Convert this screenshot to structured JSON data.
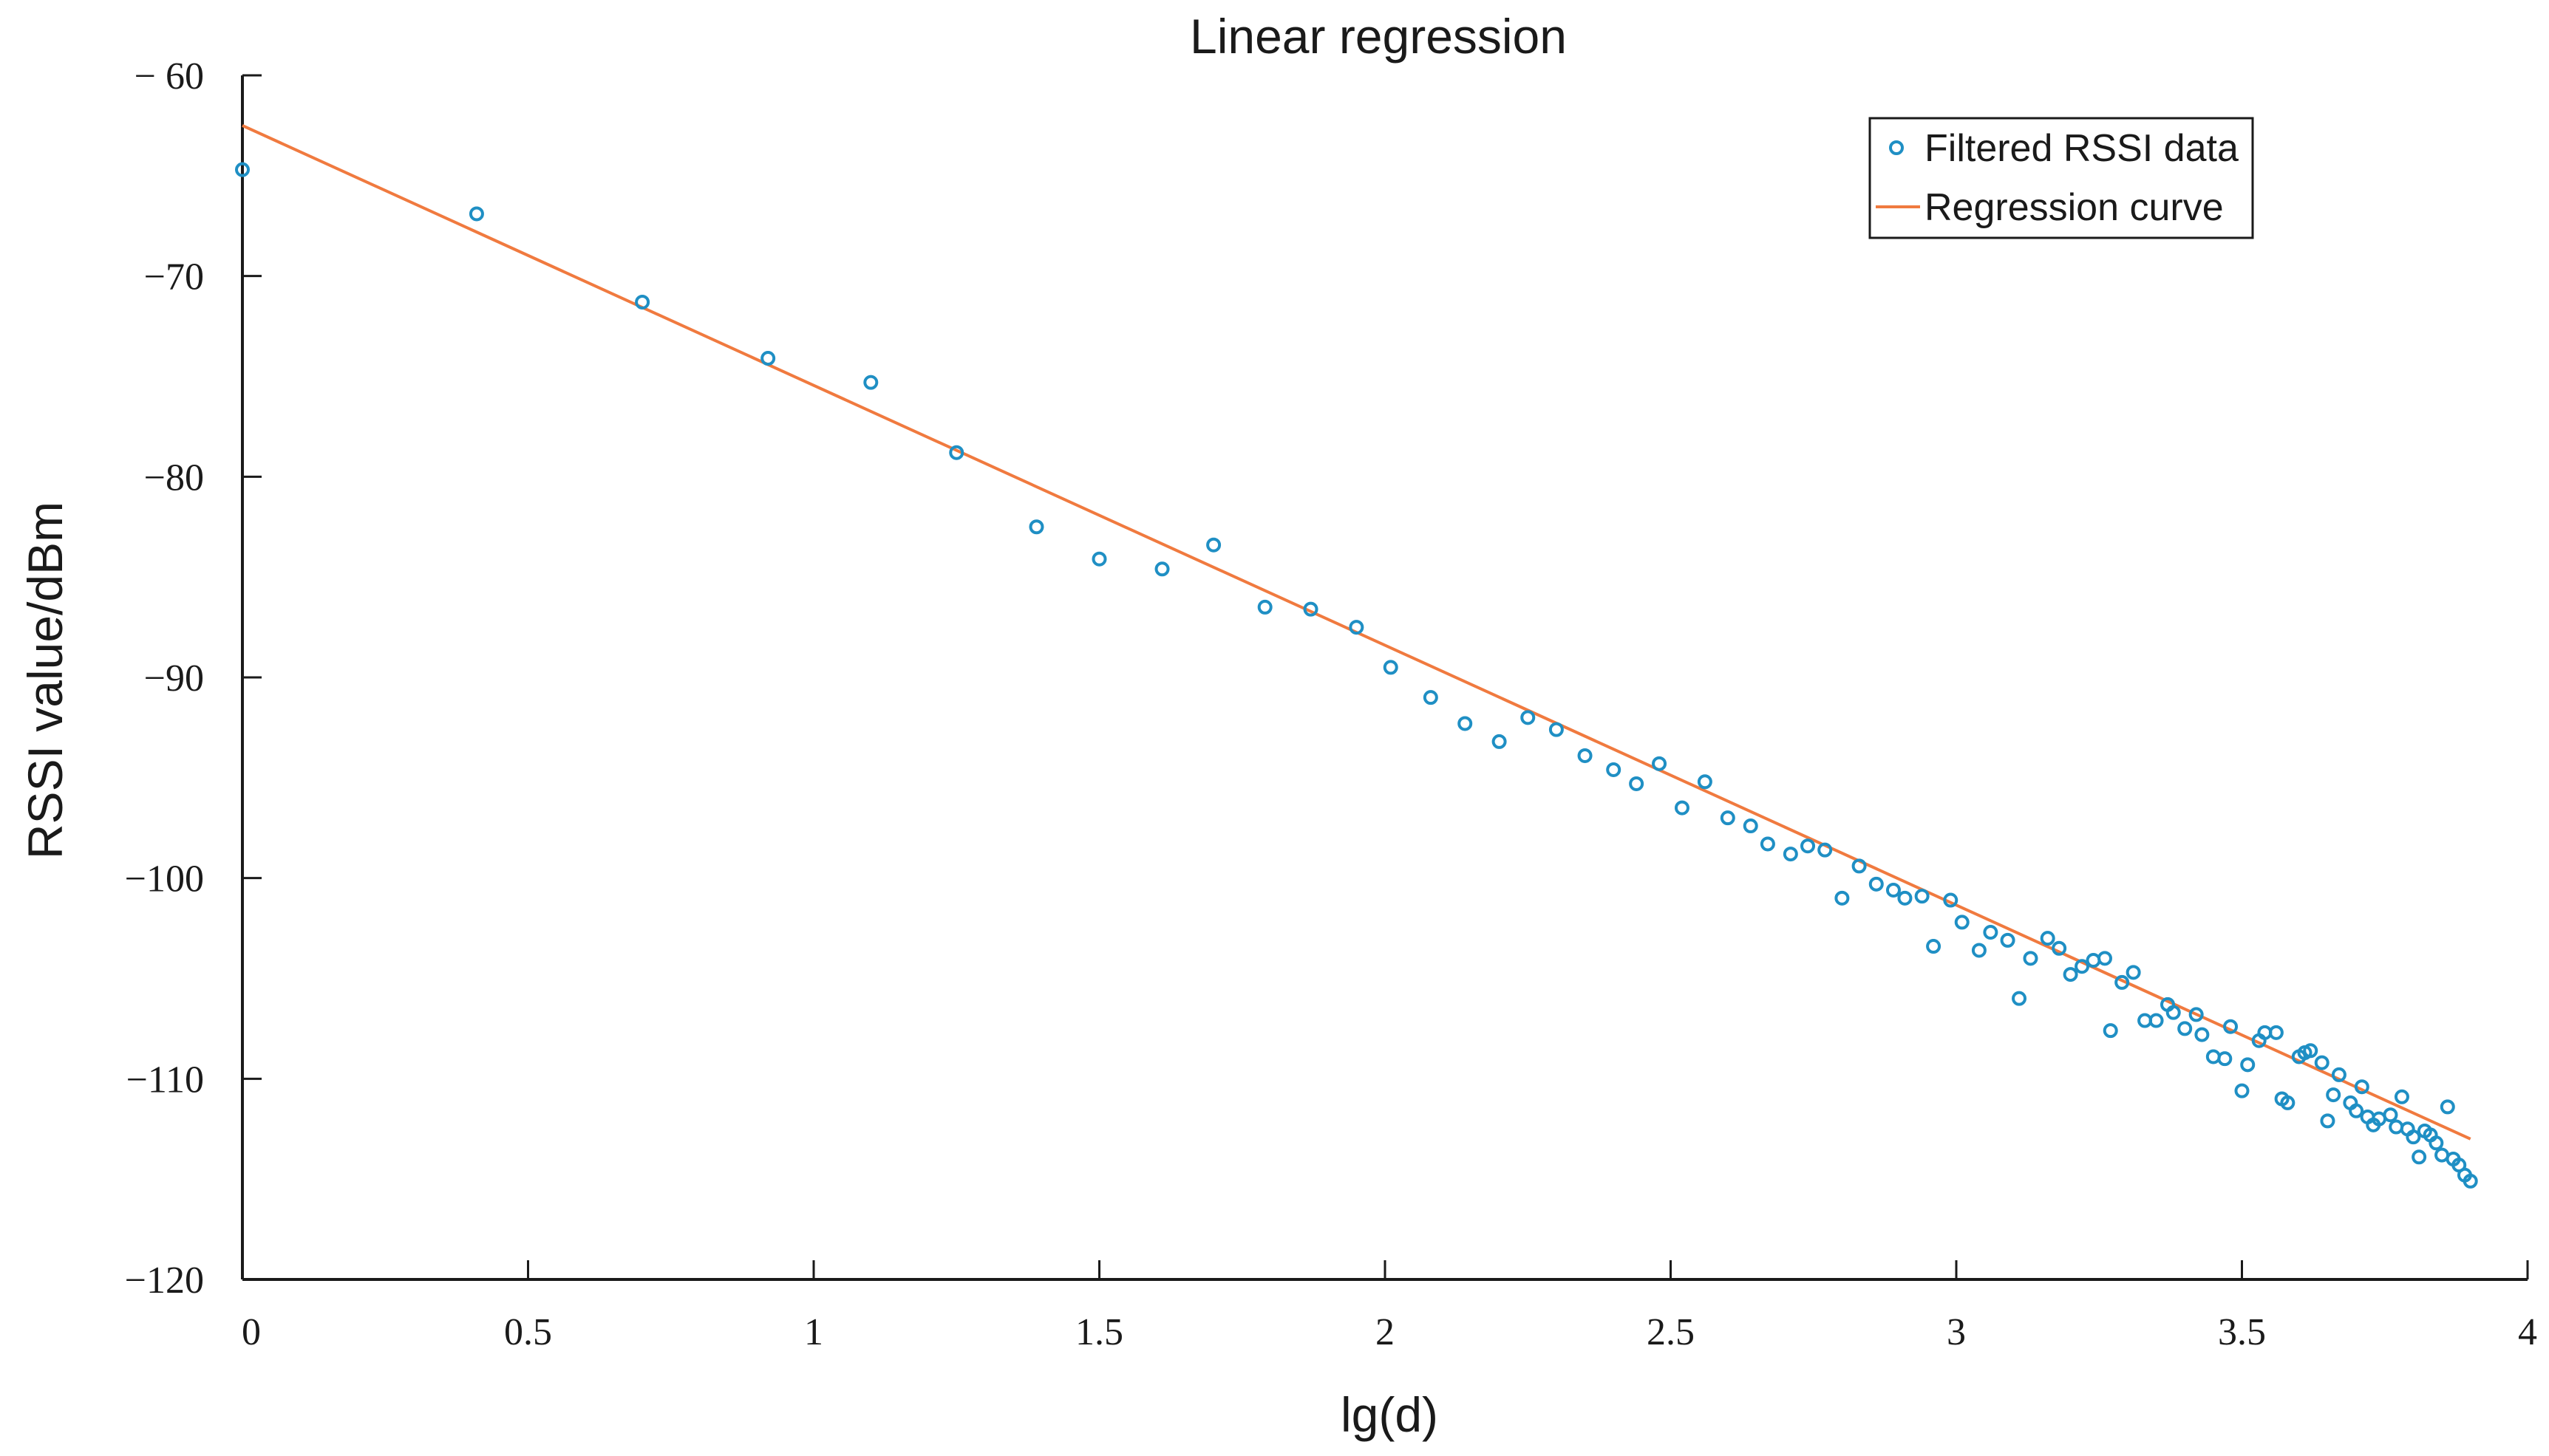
{
  "colors": {
    "scatter": "#1f8fc4",
    "line": "#f07a3f",
    "axis": "#1a1a1a",
    "background": "#ffffff"
  },
  "chart_data": {
    "type": "scatter",
    "title": "Linear regression",
    "xlabel": "lg(d)",
    "ylabel": "RSSI value/dBm",
    "xlim": [
      0,
      4
    ],
    "ylim": [
      -120,
      -60
    ],
    "grid": false,
    "legend_position": "top-right",
    "x_ticks": [
      {
        "value": 0,
        "label": "0"
      },
      {
        "value": 0.5,
        "label": "0.5"
      },
      {
        "value": 1,
        "label": "1"
      },
      {
        "value": 1.5,
        "label": "1.5"
      },
      {
        "value": 2,
        "label": "2"
      },
      {
        "value": 2.5,
        "label": "2.5"
      },
      {
        "value": 3,
        "label": "3"
      },
      {
        "value": 3.5,
        "label": "3.5"
      },
      {
        "value": 4,
        "label": "4"
      }
    ],
    "y_ticks": [
      {
        "value": -60,
        "label": "− 60"
      },
      {
        "value": -70,
        "label": "−70"
      },
      {
        "value": -80,
        "label": "−80"
      },
      {
        "value": -90,
        "label": "−90"
      },
      {
        "value": -100,
        "label": "−100"
      },
      {
        "value": -110,
        "label": "−110"
      },
      {
        "value": -120,
        "label": "−120"
      }
    ],
    "series": [
      {
        "name": "Filtered RSSI data",
        "kind": "scatter",
        "points": [
          [
            0.0,
            -64.7
          ],
          [
            0.41,
            -66.9
          ],
          [
            0.7,
            -71.3
          ],
          [
            0.92,
            -74.1
          ],
          [
            1.1,
            -75.3
          ],
          [
            1.25,
            -78.8
          ],
          [
            1.39,
            -82.5
          ],
          [
            1.5,
            -84.1
          ],
          [
            1.61,
            -84.6
          ],
          [
            1.7,
            -83.4
          ],
          [
            1.79,
            -86.5
          ],
          [
            1.87,
            -86.6
          ],
          [
            1.95,
            -87.5
          ],
          [
            2.01,
            -89.5
          ],
          [
            2.08,
            -91.0
          ],
          [
            2.14,
            -92.3
          ],
          [
            2.2,
            -93.2
          ],
          [
            2.25,
            -92.0
          ],
          [
            2.3,
            -92.6
          ],
          [
            2.35,
            -93.9
          ],
          [
            2.4,
            -94.6
          ],
          [
            2.44,
            -95.3
          ],
          [
            2.48,
            -94.3
          ],
          [
            2.52,
            -96.5
          ],
          [
            2.56,
            -95.2
          ],
          [
            2.6,
            -97.0
          ],
          [
            2.64,
            -97.4
          ],
          [
            2.67,
            -98.3
          ],
          [
            2.71,
            -98.8
          ],
          [
            2.74,
            -98.4
          ],
          [
            2.77,
            -98.6
          ],
          [
            2.8,
            -101.0
          ],
          [
            2.83,
            -99.4
          ],
          [
            2.86,
            -100.3
          ],
          [
            2.89,
            -100.6
          ],
          [
            2.91,
            -101.0
          ],
          [
            2.94,
            -100.9
          ],
          [
            2.96,
            -103.4
          ],
          [
            2.99,
            -101.1
          ],
          [
            3.01,
            -102.2
          ],
          [
            3.04,
            -103.6
          ],
          [
            3.06,
            -102.7
          ],
          [
            3.09,
            -103.1
          ],
          [
            3.11,
            -106.0
          ],
          [
            3.13,
            -104.0
          ],
          [
            3.16,
            -103.0
          ],
          [
            3.18,
            -103.5
          ],
          [
            3.2,
            -104.8
          ],
          [
            3.22,
            -104.4
          ],
          [
            3.24,
            -104.1
          ],
          [
            3.26,
            -104.0
          ],
          [
            3.27,
            -107.6
          ],
          [
            3.29,
            -105.2
          ],
          [
            3.31,
            -104.7
          ],
          [
            3.33,
            -107.1
          ],
          [
            3.35,
            -107.1
          ],
          [
            3.37,
            -106.3
          ],
          [
            3.38,
            -106.7
          ],
          [
            3.4,
            -107.5
          ],
          [
            3.42,
            -106.8
          ],
          [
            3.43,
            -107.8
          ],
          [
            3.45,
            -108.9
          ],
          [
            3.47,
            -109.0
          ],
          [
            3.48,
            -107.4
          ],
          [
            3.5,
            -110.6
          ],
          [
            3.51,
            -109.3
          ],
          [
            3.53,
            -108.1
          ],
          [
            3.54,
            -107.7
          ],
          [
            3.56,
            -107.7
          ],
          [
            3.57,
            -111.0
          ],
          [
            3.58,
            -111.2
          ],
          [
            3.6,
            -108.9
          ],
          [
            3.61,
            -108.7
          ],
          [
            3.62,
            -108.6
          ],
          [
            3.64,
            -109.2
          ],
          [
            3.65,
            -112.1
          ],
          [
            3.66,
            -110.8
          ],
          [
            3.67,
            -109.8
          ],
          [
            3.69,
            -111.2
          ],
          [
            3.7,
            -111.6
          ],
          [
            3.71,
            -110.4
          ],
          [
            3.72,
            -111.9
          ],
          [
            3.73,
            -112.3
          ],
          [
            3.74,
            -112.0
          ],
          [
            3.76,
            -111.8
          ],
          [
            3.77,
            -112.4
          ],
          [
            3.78,
            -110.9
          ],
          [
            3.79,
            -112.5
          ],
          [
            3.8,
            -112.9
          ],
          [
            3.81,
            -113.9
          ],
          [
            3.82,
            -112.6
          ],
          [
            3.83,
            -112.8
          ],
          [
            3.84,
            -113.2
          ],
          [
            3.85,
            -113.8
          ],
          [
            3.86,
            -111.4
          ],
          [
            3.87,
            -114.0
          ],
          [
            3.88,
            -114.3
          ],
          [
            3.89,
            -114.8
          ],
          [
            3.9,
            -115.1
          ]
        ]
      },
      {
        "name": "Regression curve",
        "kind": "line",
        "x": [
          0,
          3.9
        ],
        "y": [
          -62.5,
          -113.0
        ]
      }
    ]
  }
}
